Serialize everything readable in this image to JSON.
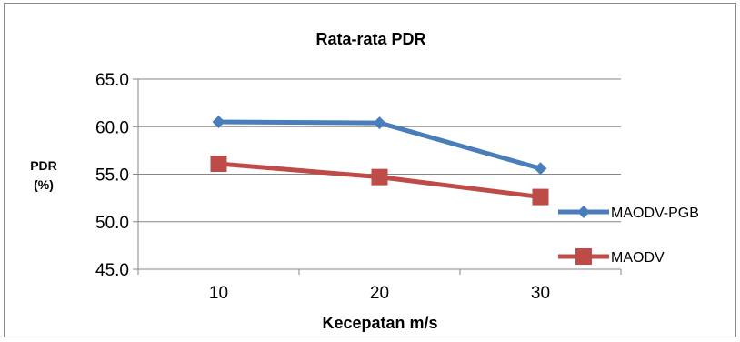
{
  "chart_data": {
    "type": "line",
    "title": "Rata-rata PDR",
    "xlabel": "Kecepatan m/s",
    "ylabel_line1": "PDR",
    "ylabel_line2": "(%)",
    "categories": [
      "10",
      "20",
      "30"
    ],
    "ylim": [
      45.0,
      65.0
    ],
    "yticks": [
      "45.0",
      "50.0",
      "55.0",
      "60.0",
      "65.0"
    ],
    "grid": true,
    "legend_position": "right",
    "series": [
      {
        "name": "MAODV-PGB",
        "values": [
          60.5,
          60.4,
          55.6
        ],
        "color": "#4a7ebb",
        "marker": "diamond"
      },
      {
        "name": "MAODV",
        "values": [
          56.1,
          54.7,
          52.6
        ],
        "color": "#be4b48",
        "marker": "square"
      }
    ]
  }
}
